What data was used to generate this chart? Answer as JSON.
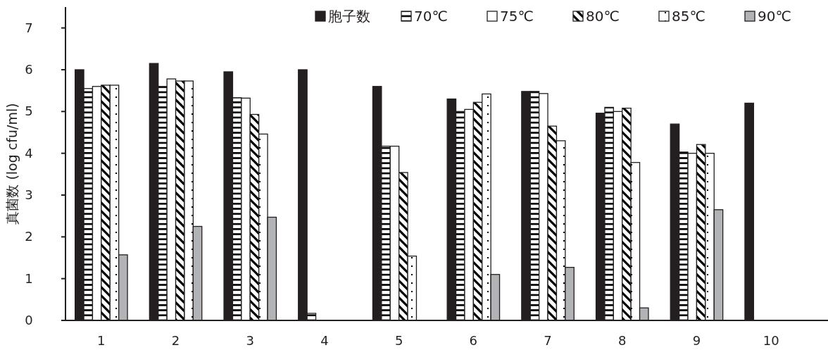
{
  "chart_data": {
    "type": "bar",
    "ylabel": "真菌数 (log cfu/ml)",
    "categories": [
      "1",
      "2",
      "3",
      "4",
      "5",
      "6",
      "7",
      "8",
      "9",
      "10"
    ],
    "series": [
      {
        "name": "胞子数",
        "color": "#231f20",
        "values": [
          6.0,
          6.15,
          5.95,
          6.0,
          5.6,
          5.3,
          5.48,
          4.96,
          4.7,
          5.2
        ]
      },
      {
        "name": "70℃",
        "color": "#231f20",
        "values": [
          5.55,
          5.6,
          5.33,
          0.17,
          4.17,
          5.0,
          5.48,
          5.1,
          4.03,
          null
        ]
      },
      {
        "name": "75℃",
        "color": "#231f20",
        "values": [
          5.6,
          5.78,
          5.32,
          null,
          4.17,
          5.05,
          5.43,
          5.0,
          4.0,
          null
        ]
      },
      {
        "name": "80℃",
        "color": "#231f20",
        "values": [
          5.63,
          5.73,
          4.93,
          null,
          3.54,
          5.22,
          4.65,
          5.08,
          4.21,
          null
        ]
      },
      {
        "name": "85℃",
        "color": "#231f20",
        "values": [
          5.63,
          5.73,
          4.46,
          null,
          1.54,
          5.42,
          4.3,
          3.78,
          4.0,
          null
        ]
      },
      {
        "name": "90℃",
        "color": "#b2b3b6",
        "values": [
          1.57,
          2.25,
          2.47,
          null,
          null,
          1.1,
          1.27,
          0.3,
          2.65,
          null
        ]
      }
    ],
    "ylim": [
      0,
      7.5
    ],
    "yticks": [
      0,
      1,
      2,
      3,
      4,
      5,
      6,
      7
    ],
    "grid": false,
    "legend": "top right"
  }
}
